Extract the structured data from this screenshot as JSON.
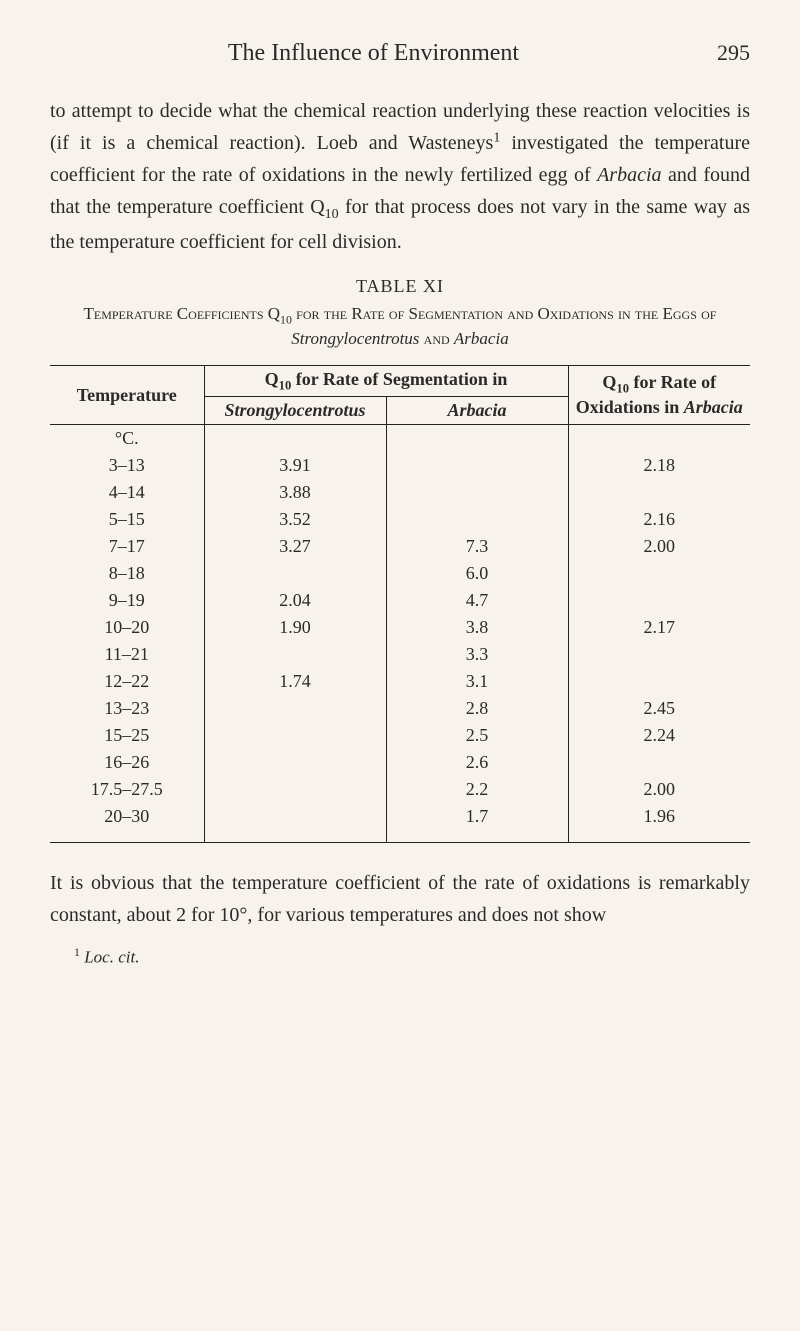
{
  "header": {
    "running_title": "The Influence of Environment",
    "page_number": "295"
  },
  "paragraph_top": {
    "text_before_sup": "to attempt to decide what the chemical reaction under­lying these reaction velocities is (if it is a chemical reaction). Loeb and Wasteneys",
    "sup1": "1",
    "text_after_sup": " investigated the temperature coefficient for the rate of oxidations in the newly fertilized egg of ",
    "italic1": "Arbacia",
    "text_mid": " and found that the temperature coefficient Q",
    "q_sub": "10",
    "text_end": " for that process does not vary in the same way as the temperature coefficient for cell division."
  },
  "table": {
    "number": "TABLE XI",
    "caption_before_q": "Temperature Coefficients Q",
    "caption_q_sub": "10",
    "caption_mid": " for the Rate of Segmentation and Oxidations in the Eggs of ",
    "caption_italic1": "Strongylocentrotus",
    "caption_and": " and ",
    "caption_italic2": "Arbacia",
    "th_temperature": "Temperature",
    "th_seg_group_before": "Q",
    "th_seg_group_sub": "10",
    "th_seg_group_after": " for Rate of Segmentation in",
    "th_strongly": "Strongylocentrotus",
    "th_arbacia": "Arbacia",
    "th_oxid_before": "Q",
    "th_oxid_sub": "10",
    "th_oxid_after": " for Rate of Oxidations in ",
    "th_oxid_italic": "Arbacia",
    "unit": "°C.",
    "rows": [
      {
        "temp": "3–13",
        "strong": "3.91",
        "arb": "",
        "oxid": "2.18"
      },
      {
        "temp": "4–14",
        "strong": "3.88",
        "arb": "",
        "oxid": ""
      },
      {
        "temp": "5–15",
        "strong": "3.52",
        "arb": "",
        "oxid": "2.16"
      },
      {
        "temp": "7–17",
        "strong": "3.27",
        "arb": "7.3",
        "oxid": "2.00"
      },
      {
        "temp": "8–18",
        "strong": "",
        "arb": "6.0",
        "oxid": ""
      },
      {
        "temp": "9–19",
        "strong": "2.04",
        "arb": "4.7",
        "oxid": ""
      },
      {
        "temp": "10–20",
        "strong": "1.90",
        "arb": "3.8",
        "oxid": "2.17"
      },
      {
        "temp": "11–21",
        "strong": "",
        "arb": "3.3",
        "oxid": ""
      },
      {
        "temp": "12–22",
        "strong": "1.74",
        "arb": "3.1",
        "oxid": ""
      },
      {
        "temp": "13–23",
        "strong": "",
        "arb": "2.8",
        "oxid": "2.45"
      },
      {
        "temp": "15–25",
        "strong": "",
        "arb": "2.5",
        "oxid": "2.24"
      },
      {
        "temp": "16–26",
        "strong": "",
        "arb": "2.6",
        "oxid": ""
      },
      {
        "temp": "17.5–27.5",
        "strong": "",
        "arb": "2.2",
        "oxid": "2.00"
      },
      {
        "temp": "20–30",
        "strong": "",
        "arb": "1.7",
        "oxid": "1.96"
      }
    ]
  },
  "paragraph_bottom": {
    "text": "It is obvious that the temperature coefficient of the rate of oxidations is remarkably constant, about 2 for 10°, for various temperatures and does not show"
  },
  "footnote": {
    "marker": "1",
    "text": " Loc. cit."
  },
  "style": {
    "background_color": "#f7f3ec",
    "text_color": "#2a2a2a",
    "font_family": "Georgia, 'Times New Roman', serif",
    "body_fontsize": 20,
    "table_fontsize": 18,
    "rule_color": "#222222"
  }
}
